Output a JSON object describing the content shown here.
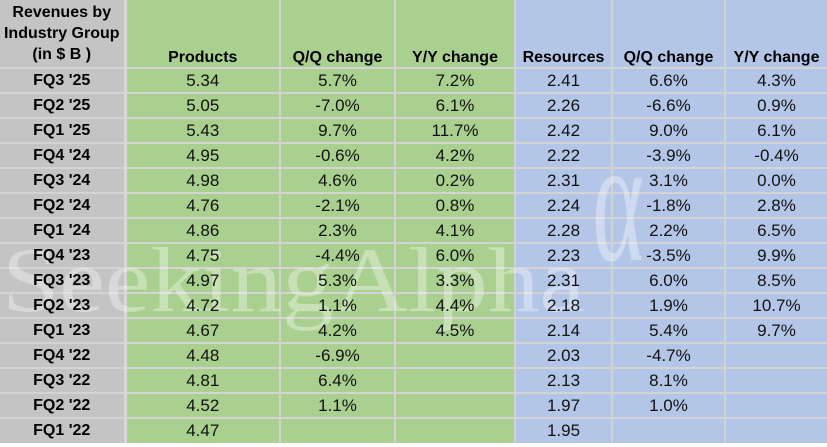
{
  "header": {
    "title_lines": [
      "Revenues by",
      "Industry Group",
      "(in $ B )"
    ],
    "columns": [
      {
        "key": "products",
        "label": "Products"
      },
      {
        "key": "products-qq",
        "label": "Q/Q change"
      },
      {
        "key": "products-yy",
        "label": "Y/Y change"
      },
      {
        "key": "resources",
        "label": "Resources"
      },
      {
        "key": "resources-qq",
        "label": "Q/Q change"
      },
      {
        "key": "resources-yy",
        "label": "Y/Y change"
      }
    ]
  },
  "table": {
    "rows": [
      {
        "label": "FQ3 '25",
        "values": [
          "5.34",
          "5.7%",
          "7.2%",
          "2.41",
          "6.6%",
          "4.3%"
        ]
      },
      {
        "label": "FQ2 '25",
        "values": [
          "5.05",
          "-7.0%",
          "6.1%",
          "2.26",
          "-6.6%",
          "0.9%"
        ]
      },
      {
        "label": "FQ1 '25",
        "values": [
          "5.43",
          "9.7%",
          "11.7%",
          "2.42",
          "9.0%",
          "6.1%"
        ]
      },
      {
        "label": "FQ4 '24",
        "values": [
          "4.95",
          "-0.6%",
          "4.2%",
          "2.22",
          "-3.9%",
          "-0.4%"
        ]
      },
      {
        "label": "FQ3 '24",
        "values": [
          "4.98",
          "4.6%",
          "0.2%",
          "2.31",
          "3.1%",
          "0.0%"
        ]
      },
      {
        "label": "FQ2 '24",
        "values": [
          "4.76",
          "-2.1%",
          "0.8%",
          "2.24",
          "-1.8%",
          "2.8%"
        ]
      },
      {
        "label": "FQ1 '24",
        "values": [
          "4.86",
          "2.3%",
          "4.1%",
          "2.28",
          "2.2%",
          "6.5%"
        ]
      },
      {
        "label": "FQ4 '23",
        "values": [
          "4.75",
          "-4.4%",
          "6.0%",
          "2.23",
          "-3.5%",
          "9.9%"
        ]
      },
      {
        "label": "FQ3 '23",
        "values": [
          "4.97",
          "5.3%",
          "3.3%",
          "2.31",
          "6.0%",
          "8.5%"
        ]
      },
      {
        "label": "FQ2 '23",
        "values": [
          "4.72",
          "1.1%",
          "4.4%",
          "2.18",
          "1.9%",
          "10.7%"
        ]
      },
      {
        "label": "FQ1 '23",
        "values": [
          "4.67",
          "4.2%",
          "4.5%",
          "2.14",
          "5.4%",
          "9.7%"
        ]
      },
      {
        "label": "FQ4 '22",
        "values": [
          "4.48",
          "-6.9%",
          "",
          "2.03",
          "-4.7%",
          ""
        ]
      },
      {
        "label": "FQ3 '22",
        "values": [
          "4.81",
          "6.4%",
          "",
          "2.13",
          "8.1%",
          ""
        ]
      },
      {
        "label": "FQ2 '22",
        "values": [
          "4.52",
          "1.1%",
          "",
          "1.97",
          "1.0%",
          ""
        ]
      },
      {
        "label": "FQ1 '22",
        "values": [
          "4.47",
          "",
          "",
          "1.95",
          "",
          ""
        ]
      }
    ]
  },
  "watermark": {
    "text": "SeekingAlpha",
    "alpha": "α"
  },
  "colors": {
    "label_bg": "#c4c4c4",
    "products_bg": "#a9d08e",
    "resources_bg": "#b4c6e7",
    "gridline": "#d2d2d2",
    "text": "#000000"
  },
  "chart_data": {
    "type": "table",
    "title": "Revenues by Industry Group (in $ B)",
    "categories": [
      "FQ3 '25",
      "FQ2 '25",
      "FQ1 '25",
      "FQ4 '24",
      "FQ3 '24",
      "FQ2 '24",
      "FQ1 '24",
      "FQ4 '23",
      "FQ3 '23",
      "FQ2 '23",
      "FQ1 '23",
      "FQ4 '22",
      "FQ3 '22",
      "FQ2 '22",
      "FQ1 '22"
    ],
    "series": [
      {
        "name": "Products ($B)",
        "values": [
          5.34,
          5.05,
          5.43,
          4.95,
          4.98,
          4.76,
          4.86,
          4.75,
          4.97,
          4.72,
          4.67,
          4.48,
          4.81,
          4.52,
          4.47
        ]
      },
      {
        "name": "Products Q/Q change (%)",
        "values": [
          5.7,
          -7.0,
          9.7,
          -0.6,
          4.6,
          -2.1,
          2.3,
          -4.4,
          5.3,
          1.1,
          4.2,
          -6.9,
          6.4,
          1.1,
          null
        ]
      },
      {
        "name": "Products Y/Y change (%)",
        "values": [
          7.2,
          6.1,
          11.7,
          4.2,
          0.2,
          0.8,
          4.1,
          6.0,
          3.3,
          4.4,
          4.5,
          null,
          null,
          null,
          null
        ]
      },
      {
        "name": "Resources ($B)",
        "values": [
          2.41,
          2.26,
          2.42,
          2.22,
          2.31,
          2.24,
          2.28,
          2.23,
          2.31,
          2.18,
          2.14,
          2.03,
          2.13,
          1.97,
          1.95
        ]
      },
      {
        "name": "Resources Q/Q change (%)",
        "values": [
          6.6,
          -6.6,
          9.0,
          -3.9,
          3.1,
          -1.8,
          2.2,
          -3.5,
          6.0,
          1.9,
          5.4,
          -4.7,
          8.1,
          1.0,
          null
        ]
      },
      {
        "name": "Resources Y/Y change (%)",
        "values": [
          4.3,
          0.9,
          6.1,
          -0.4,
          0.0,
          2.8,
          6.5,
          9.9,
          8.5,
          10.7,
          9.7,
          null,
          null,
          null,
          null
        ]
      }
    ]
  }
}
